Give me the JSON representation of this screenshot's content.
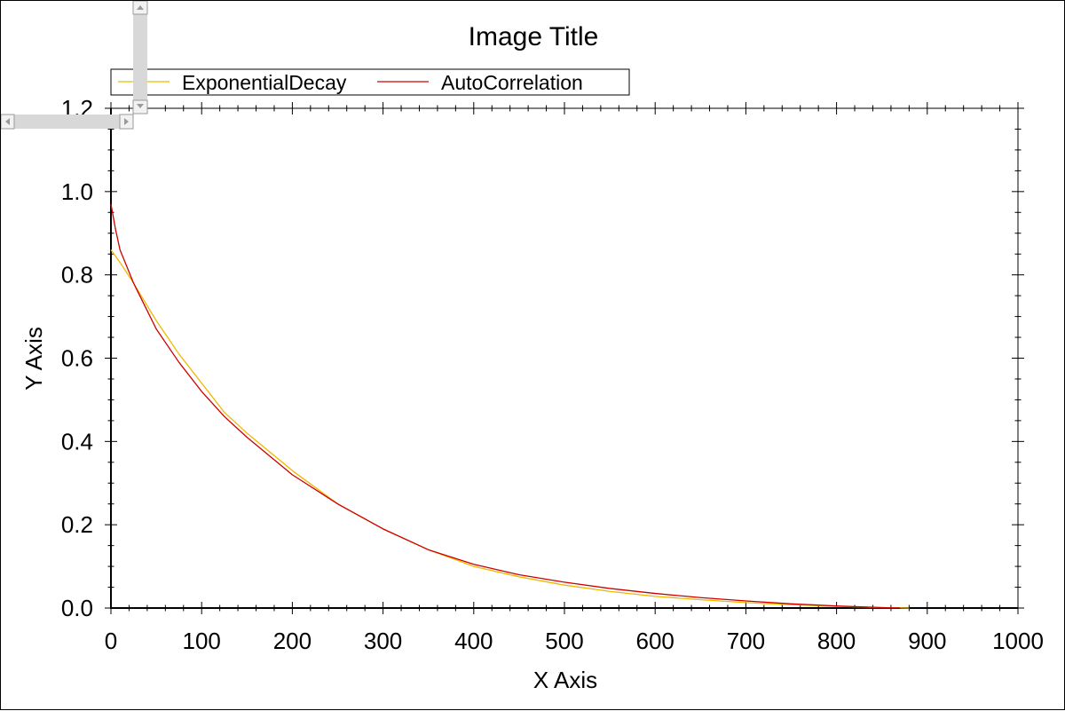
{
  "chart_data": {
    "type": "line",
    "title": "Image Title",
    "xlabel": "X Axis",
    "ylabel": "Y Axis",
    "xlim": [
      0,
      1000
    ],
    "ylim": [
      0,
      1.2
    ],
    "xticks": [
      0,
      100,
      200,
      300,
      400,
      500,
      600,
      700,
      800,
      900,
      1000
    ],
    "yticks": [
      0.0,
      0.2,
      0.4,
      0.6,
      0.8,
      1.0,
      1.2
    ],
    "xtick_labels": [
      "0",
      "100",
      "200",
      "300",
      "400",
      "500",
      "600",
      "700",
      "800",
      "900",
      "1000"
    ],
    "ytick_labels": [
      "0.0",
      "0.2",
      "0.4",
      "0.6",
      "0.8",
      "1.0",
      "1.2"
    ],
    "grid": false,
    "legend_position": "top-left",
    "series": [
      {
        "name": "ExponentialDecay",
        "color": "#f0b800",
        "x": [
          0,
          10,
          25,
          50,
          75,
          100,
          125,
          150,
          200,
          250,
          300,
          350,
          400,
          450,
          500,
          550,
          600,
          650,
          700,
          750,
          800,
          850,
          880
        ],
        "y": [
          0.86,
          0.83,
          0.78,
          0.69,
          0.61,
          0.54,
          0.47,
          0.42,
          0.33,
          0.25,
          0.19,
          0.14,
          0.1,
          0.075,
          0.055,
          0.04,
          0.028,
          0.02,
          0.013,
          0.008,
          0.004,
          0.001,
          0.0
        ]
      },
      {
        "name": "AutoCorrelation",
        "color": "#cc0000",
        "x": [
          0,
          5,
          10,
          25,
          50,
          75,
          100,
          125,
          150,
          200,
          250,
          300,
          350,
          400,
          450,
          500,
          550,
          600,
          650,
          700,
          750,
          800,
          850,
          870
        ],
        "y": [
          0.97,
          0.91,
          0.86,
          0.78,
          0.67,
          0.59,
          0.52,
          0.46,
          0.41,
          0.32,
          0.25,
          0.19,
          0.14,
          0.105,
          0.08,
          0.062,
          0.047,
          0.035,
          0.025,
          0.017,
          0.01,
          0.005,
          0.001,
          0.0
        ]
      }
    ]
  }
}
